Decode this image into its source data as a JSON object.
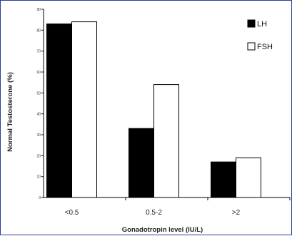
{
  "chart_data": {
    "type": "bar",
    "categories": [
      "<0.5",
      "0.5-2",
      ">2"
    ],
    "series": [
      {
        "name": "LH",
        "values": [
          83,
          33,
          17
        ],
        "color": "#000000"
      },
      {
        "name": "FSH",
        "values": [
          84,
          54,
          19
        ],
        "color": "#ffffff"
      }
    ],
    "xlabel": "Gonadotropin level (IU/L)",
    "ylabel": "Normal Testosterone (%)",
    "ylim": [
      0,
      90
    ],
    "yticks": [
      0,
      10,
      20,
      30,
      40,
      50,
      60,
      70,
      80,
      90
    ],
    "grid": false,
    "legend_position": "top-right"
  }
}
